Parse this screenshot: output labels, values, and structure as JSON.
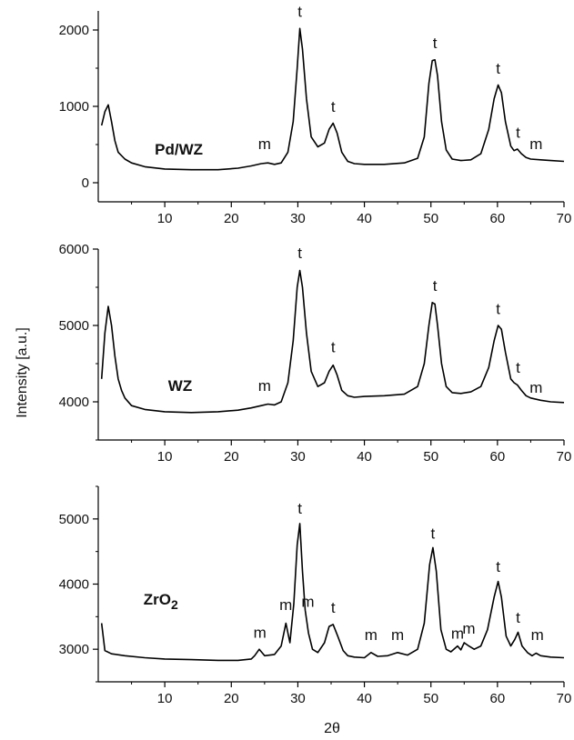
{
  "chart_data": [
    {
      "type": "line",
      "sample_label": "Pd/WZ",
      "xlim": [
        0,
        70
      ],
      "ylim": [
        -250,
        2250
      ],
      "xticks": [
        10,
        20,
        30,
        40,
        50,
        60,
        70
      ],
      "yticks": [
        0,
        1000,
        2000
      ],
      "series": [
        {
          "x": [
            0.5,
            1,
            1.5,
            2,
            2.5,
            3,
            4,
            5,
            7,
            10,
            14,
            18,
            21,
            23,
            24.5,
            25.5,
            26.5,
            27.5,
            28.5,
            29.3,
            29.9,
            30.3,
            30.7,
            31.3,
            32,
            33,
            34,
            34.7,
            35.3,
            35.9,
            36.6,
            37.5,
            38.5,
            40,
            43,
            46,
            48,
            49,
            49.7,
            50.2,
            50.6,
            51,
            51.6,
            52.3,
            53.2,
            54.5,
            56,
            57.5,
            58.7,
            59.5,
            60.1,
            60.6,
            61.2,
            62,
            62.5,
            63,
            63.6,
            64.3,
            65,
            66.5,
            68,
            70
          ],
          "y": [
            750,
            930,
            1020,
            800,
            550,
            400,
            310,
            260,
            210,
            180,
            170,
            170,
            190,
            220,
            250,
            260,
            240,
            260,
            400,
            800,
            1500,
            2020,
            1750,
            1100,
            600,
            470,
            520,
            700,
            780,
            650,
            400,
            280,
            250,
            240,
            240,
            260,
            320,
            600,
            1300,
            1600,
            1610,
            1400,
            800,
            430,
            310,
            290,
            300,
            380,
            700,
            1100,
            1280,
            1180,
            800,
            480,
            420,
            440,
            380,
            330,
            310,
            300,
            290,
            280
          ]
        }
      ],
      "annotations": [
        {
          "text": "m",
          "x": 25,
          "y": 440
        },
        {
          "text": "t",
          "x": 30.3,
          "y": 2170
        },
        {
          "text": "t",
          "x": 35.3,
          "y": 930
        },
        {
          "text": "t",
          "x": 50.6,
          "y": 1760
        },
        {
          "text": "t",
          "x": 60.1,
          "y": 1430
        },
        {
          "text": "t",
          "x": 63.1,
          "y": 590
        },
        {
          "text": "m",
          "x": 65.8,
          "y": 440
        }
      ]
    },
    {
      "type": "line",
      "sample_label": "WZ",
      "xlim": [
        0,
        70
      ],
      "ylim": [
        3500,
        6000
      ],
      "xticks": [
        10,
        20,
        30,
        40,
        50,
        60,
        70
      ],
      "yticks": [
        4000,
        5000,
        6000
      ],
      "series": [
        {
          "x": [
            0.5,
            1,
            1.5,
            2,
            2.5,
            3,
            3.5,
            4,
            5,
            7,
            10,
            14,
            18,
            21,
            23,
            24.5,
            25.5,
            26.5,
            27.5,
            28.5,
            29.3,
            29.9,
            30.3,
            30.7,
            31.3,
            32,
            33,
            34,
            34.7,
            35.3,
            35.9,
            36.6,
            37.5,
            38.5,
            40,
            43,
            46,
            48,
            49,
            49.7,
            50.2,
            50.6,
            51,
            51.6,
            52.3,
            53.2,
            54.5,
            56,
            57.5,
            58.7,
            59.5,
            60.1,
            60.6,
            61.2,
            62,
            62.5,
            63,
            63.6,
            64.3,
            65,
            66.5,
            68,
            70
          ],
          "y": [
            4300,
            4900,
            5250,
            5000,
            4600,
            4300,
            4150,
            4050,
            3950,
            3900,
            3870,
            3860,
            3870,
            3890,
            3920,
            3950,
            3970,
            3960,
            4000,
            4250,
            4800,
            5500,
            5720,
            5500,
            4900,
            4400,
            4200,
            4250,
            4400,
            4480,
            4350,
            4150,
            4080,
            4060,
            4070,
            4080,
            4100,
            4200,
            4500,
            5000,
            5300,
            5280,
            5000,
            4500,
            4200,
            4120,
            4110,
            4130,
            4200,
            4450,
            4800,
            5000,
            4950,
            4650,
            4300,
            4250,
            4220,
            4150,
            4080,
            4050,
            4020,
            4000,
            3990
          ]
        }
      ],
      "annotations": [
        {
          "text": "m",
          "x": 25,
          "y": 4140
        },
        {
          "text": "t",
          "x": 30.3,
          "y": 5880
        },
        {
          "text": "t",
          "x": 35.3,
          "y": 4650
        },
        {
          "text": "t",
          "x": 50.6,
          "y": 5450
        },
        {
          "text": "t",
          "x": 60.1,
          "y": 5150
        },
        {
          "text": "t",
          "x": 63.1,
          "y": 4380
        },
        {
          "text": "m",
          "x": 65.8,
          "y": 4120
        }
      ]
    },
    {
      "type": "line",
      "sample_label": "ZrO2",
      "xlim": [
        0,
        70
      ],
      "ylim": [
        2500,
        5500
      ],
      "xticks": [
        10,
        20,
        30,
        40,
        50,
        60,
        70
      ],
      "yticks": [
        3000,
        4000,
        5000
      ],
      "series": [
        {
          "x": [
            0.5,
            1,
            2,
            4,
            7,
            10,
            14,
            18,
            21,
            23,
            23.5,
            24.2,
            25,
            26.5,
            27.5,
            28.2,
            28.8,
            29.4,
            29.9,
            30.3,
            30.7,
            31.1,
            31.6,
            32.2,
            33,
            34,
            34.7,
            35.3,
            36,
            36.8,
            37.5,
            38.5,
            40,
            41,
            42,
            43.5,
            45,
            46.5,
            48,
            49,
            49.8,
            50.3,
            50.8,
            51.5,
            52.3,
            53,
            54,
            54.5,
            55,
            55.7,
            56.5,
            57.5,
            58.5,
            59.5,
            60.1,
            60.6,
            61.3,
            62,
            62.6,
            63.1,
            63.7,
            64.5,
            65.2,
            65.8,
            66.5,
            68,
            70
          ],
          "y": [
            3400,
            2980,
            2930,
            2900,
            2870,
            2850,
            2840,
            2830,
            2830,
            2850,
            2900,
            3000,
            2900,
            2920,
            3050,
            3400,
            3100,
            3700,
            4600,
            4930,
            4200,
            3600,
            3250,
            3000,
            2950,
            3100,
            3350,
            3380,
            3200,
            2980,
            2900,
            2880,
            2870,
            2950,
            2890,
            2900,
            2950,
            2910,
            3000,
            3400,
            4300,
            4560,
            4200,
            3300,
            3000,
            2960,
            3050,
            2990,
            3100,
            3050,
            3000,
            3050,
            3300,
            3800,
            4040,
            3800,
            3200,
            3050,
            3150,
            3260,
            3050,
            2950,
            2900,
            2940,
            2900,
            2880,
            2870
          ]
        }
      ],
      "annotations": [
        {
          "text": "m",
          "x": 24.3,
          "y": 3180
        },
        {
          "text": "m",
          "x": 28.2,
          "y": 3600
        },
        {
          "text": "t",
          "x": 30.3,
          "y": 5080
        },
        {
          "text": "m",
          "x": 31.5,
          "y": 3650
        },
        {
          "text": "t",
          "x": 35.3,
          "y": 3560
        },
        {
          "text": "m",
          "x": 41,
          "y": 3140
        },
        {
          "text": "m",
          "x": 45,
          "y": 3140
        },
        {
          "text": "t",
          "x": 50.3,
          "y": 4700
        },
        {
          "text": "m",
          "x": 54,
          "y": 3160
        },
        {
          "text": "m",
          "x": 55.7,
          "y": 3240
        },
        {
          "text": "t",
          "x": 60.1,
          "y": 4190
        },
        {
          "text": "t",
          "x": 63.1,
          "y": 3410
        },
        {
          "text": "m",
          "x": 66,
          "y": 3140
        }
      ]
    }
  ],
  "ylabel": "Intensity [a.u.]",
  "xlabel": "2θ",
  "colors": {
    "line": "#000000",
    "axis": "#000000",
    "text": "#111111"
  }
}
